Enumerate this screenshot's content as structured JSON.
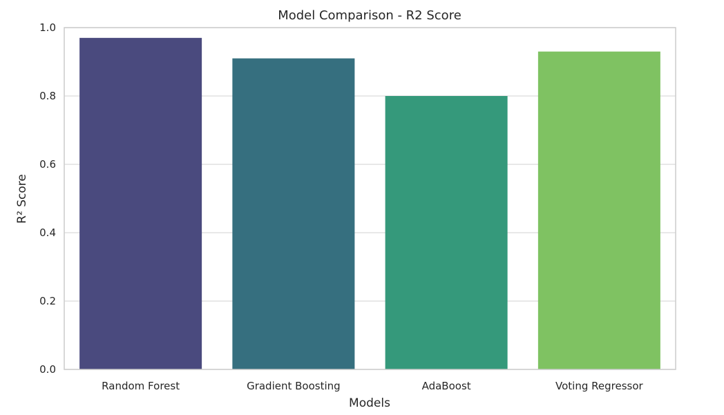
{
  "chart_data": {
    "type": "bar",
    "title": "Model Comparison - R2 Score",
    "xlabel": "Models",
    "ylabel": "R² Score",
    "categories": [
      "Random Forest",
      "Gradient Boosting",
      "AdaBoost",
      "Voting Regressor"
    ],
    "values": [
      0.97,
      0.91,
      0.8,
      0.93
    ],
    "ylim": [
      0,
      1.0
    ],
    "yticks": [
      "0.0",
      "0.2",
      "0.4",
      "0.6",
      "0.8",
      "1.0"
    ],
    "grid": "horizontal",
    "colors": [
      "#482173",
      "#2e6f8e",
      "#29af7f",
      "#73d056"
    ],
    "bar_colors": [
      "#4a4a7e",
      "#366f7f",
      "#35997b",
      "#7fc262"
    ]
  }
}
